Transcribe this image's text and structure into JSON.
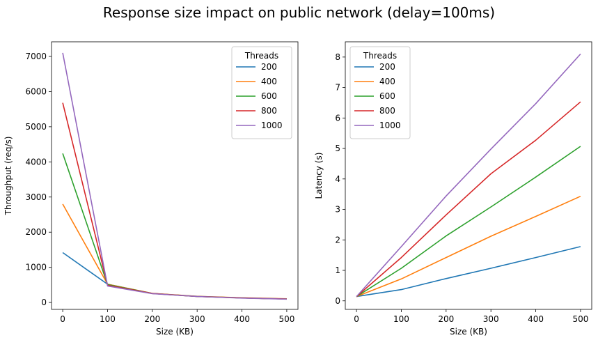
{
  "figure": {
    "title": "Response size impact on public network (delay=100ms)"
  },
  "chart_data": [
    {
      "type": "line",
      "title": "",
      "xlabel": "Size (KB)",
      "ylabel": "Throughput (req/s)",
      "x": [
        0,
        100,
        200,
        300,
        400,
        500
      ],
      "xlim": [
        -25,
        525
      ],
      "ylim": [
        -196,
        7416
      ],
      "xticks": [
        0,
        100,
        200,
        300,
        400,
        500
      ],
      "yticks": [
        0,
        1000,
        2000,
        3000,
        4000,
        5000,
        6000,
        7000
      ],
      "legend": {
        "title": "Threads",
        "placement": "upper right"
      },
      "series": [
        {
          "name": "200",
          "color": "#1f77b4",
          "values": [
            1420,
            520,
            255,
            175,
            130,
            100
          ]
        },
        {
          "name": "400",
          "color": "#ff7f0e",
          "values": [
            2800,
            520,
            260,
            175,
            135,
            105
          ]
        },
        {
          "name": "600",
          "color": "#2ca02c",
          "values": [
            4240,
            510,
            255,
            170,
            130,
            100
          ]
        },
        {
          "name": "800",
          "color": "#d62728",
          "values": [
            5680,
            490,
            255,
            170,
            130,
            100
          ]
        },
        {
          "name": "1000",
          "color": "#9467bd",
          "values": [
            7100,
            470,
            250,
            170,
            125,
            95
          ]
        }
      ]
    },
    {
      "type": "line",
      "title": "",
      "xlabel": "Size (KB)",
      "ylabel": "Latency (s)",
      "x": [
        0,
        100,
        200,
        300,
        400,
        500
      ],
      "xlim": [
        -25,
        525
      ],
      "ylim": [
        -0.28,
        8.5
      ],
      "xticks": [
        0,
        100,
        200,
        300,
        400,
        500
      ],
      "yticks": [
        0,
        1,
        2,
        3,
        4,
        5,
        6,
        7,
        8
      ],
      "legend": {
        "title": "Threads",
        "placement": "upper left"
      },
      "series": [
        {
          "name": "200",
          "color": "#1f77b4",
          "values": [
            0.14,
            0.37,
            0.73,
            1.07,
            1.42,
            1.78
          ]
        },
        {
          "name": "400",
          "color": "#ff7f0e",
          "values": [
            0.14,
            0.72,
            1.42,
            2.12,
            2.77,
            3.43
          ]
        },
        {
          "name": "600",
          "color": "#2ca02c",
          "values": [
            0.14,
            1.07,
            2.13,
            3.08,
            4.06,
            5.07
          ]
        },
        {
          "name": "800",
          "color": "#d62728",
          "values": [
            0.14,
            1.42,
            2.82,
            4.17,
            5.27,
            6.53
          ]
        },
        {
          "name": "1000",
          "color": "#9467bd",
          "values": [
            0.14,
            1.78,
            3.44,
            4.98,
            6.47,
            8.1
          ]
        }
      ]
    }
  ]
}
